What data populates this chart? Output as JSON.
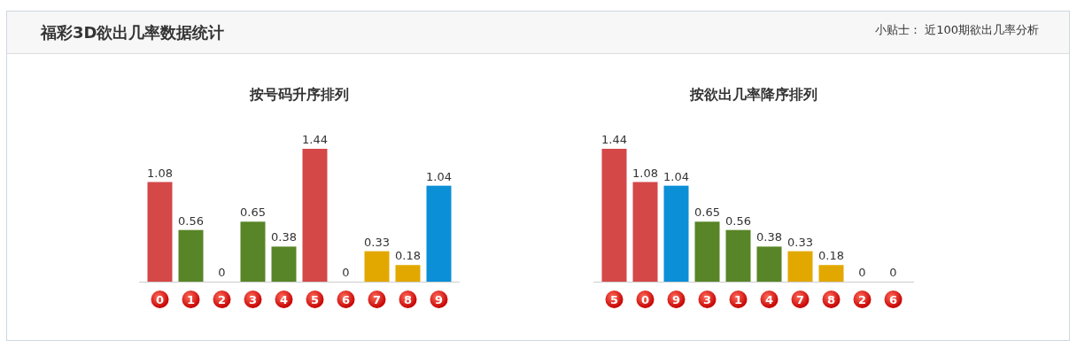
{
  "chart_data": [
    {
      "type": "other",
      "title": "福彩3D欲出几率数据统计",
      "annotations": [
        "小贴士：  近100期欲出几率分析"
      ]
    },
    {
      "type": "bar",
      "title": "按号码升序排列",
      "categories": [
        "0",
        "1",
        "2",
        "3",
        "4",
        "5",
        "6",
        "7",
        "8",
        "9"
      ],
      "values": [
        1.08,
        0.56,
        0,
        0.65,
        0.38,
        1.44,
        0,
        0.33,
        0.18,
        1.04
      ],
      "colors": [
        "#d44848",
        "#588527",
        "#588527",
        "#588527",
        "#588527",
        "#d44848",
        "#588527",
        "#e2a800",
        "#e2a800",
        "#0b8fd7"
      ],
      "data_labels": true
    },
    {
      "type": "bar",
      "title": "按欲出几率降序排列",
      "categories": [
        "5",
        "0",
        "9",
        "3",
        "1",
        "4",
        "7",
        "8",
        "2",
        "6"
      ],
      "values": [
        1.44,
        1.08,
        1.04,
        0.65,
        0.56,
        0.38,
        0.33,
        0.18,
        0,
        0
      ],
      "colors": [
        "#d44848",
        "#d44848",
        "#0b8fd7",
        "#588527",
        "#588527",
        "#588527",
        "#e2a800",
        "#e2a800",
        "#588527",
        "#588527"
      ],
      "data_labels": true
    }
  ]
}
